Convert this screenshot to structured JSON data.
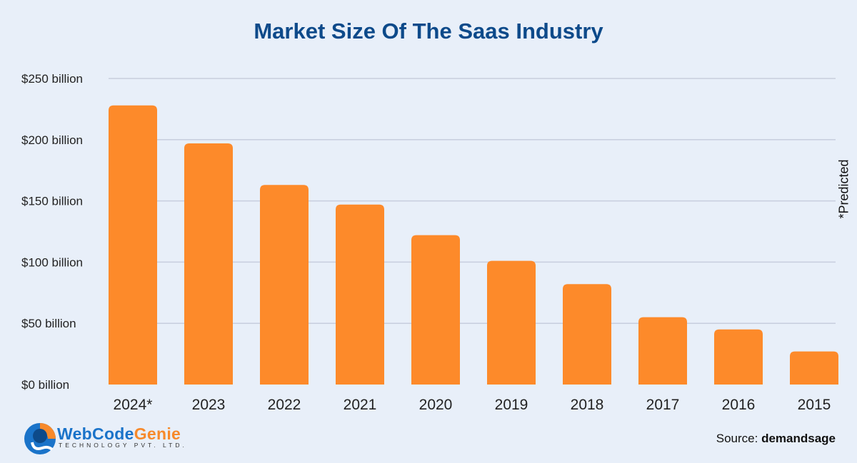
{
  "chart_data": {
    "type": "bar",
    "title": "Market Size Of The Saas Industry",
    "categories": [
      "2024*",
      "2023",
      "2022",
      "2021",
      "2020",
      "2019",
      "2018",
      "2017",
      "2016",
      "2015"
    ],
    "values": [
      228,
      197,
      163,
      147,
      122,
      101,
      82,
      55,
      45,
      27
    ],
    "unit": "billion USD",
    "yticks": [
      "$0 billion",
      "$50 billion",
      "$100 billion",
      "$150 billion",
      "$200 billion",
      "$250 billion"
    ],
    "ylim": [
      0,
      250
    ],
    "grid": true,
    "bar_color": "#fd8a2a",
    "annotation": "*Predicted"
  },
  "source": {
    "label": "Source:",
    "value": "demandsage"
  },
  "logo": {
    "name_part1": "WebCode",
    "name_part2": "Genie",
    "tagline": "TECHNOLOGY PVT. LTD."
  }
}
